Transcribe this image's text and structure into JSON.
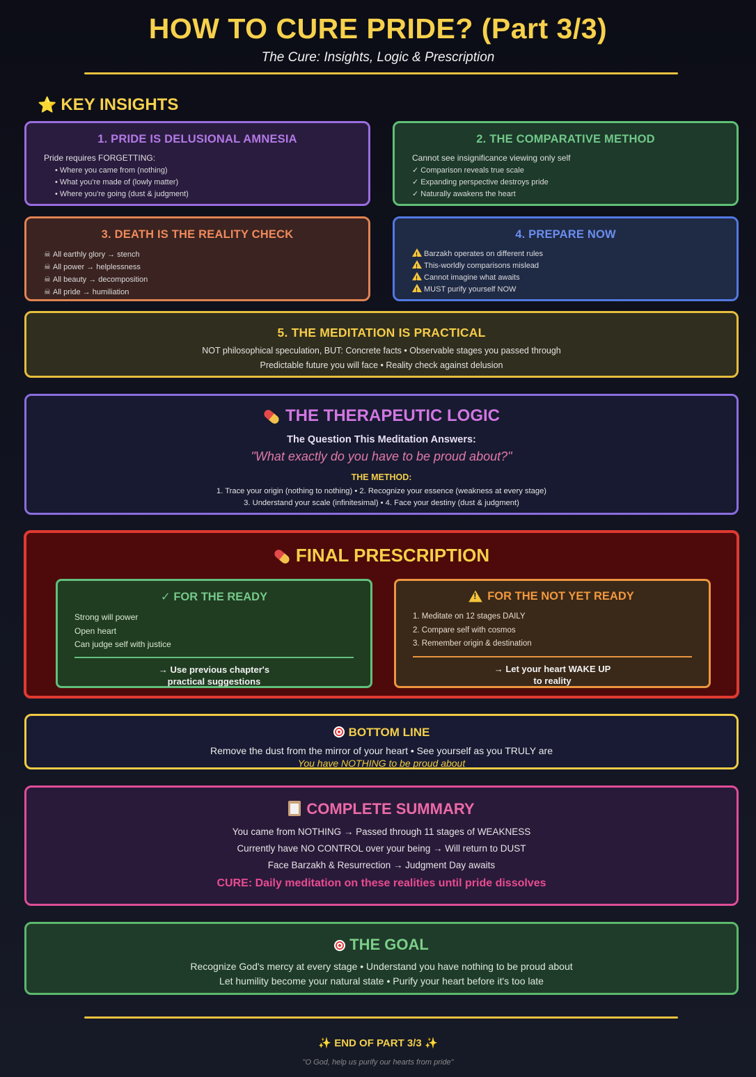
{
  "header": {
    "title": "HOW TO CURE PRIDE? (Part 3/3)",
    "subtitle": "The Cure: Insights, Logic & Prescription"
  },
  "insights": {
    "heading": "KEY INSIGHTS",
    "heading_icon": "star-icon",
    "cards": [
      {
        "title": "1. PRIDE IS DELUSIONAL AMNESIA",
        "intro": "Pride requires FORGETTING:",
        "items": [
          "Where you came from (nothing)",
          "What you're made of (lowly matter)",
          "Where you're going (dust & judgment)"
        ],
        "bullet": "•"
      },
      {
        "title": "2. THE COMPARATIVE METHOD",
        "intro": "Cannot see insignificance viewing only self",
        "items": [
          "Comparison reveals true scale",
          "Expanding perspective destroys pride",
          "Naturally awakens the heart"
        ],
        "bullet": "✓"
      },
      {
        "title": "3. DEATH IS THE REALITY CHECK",
        "items": [
          "All earthly glory → stench",
          "All power → helplessness",
          "All beauty → decomposition",
          "All pride → humiliation"
        ],
        "bullet": "☠"
      },
      {
        "title": "4. PREPARE NOW",
        "items": [
          "Barzakh operates on different rules",
          "This-worldly comparisons mislead",
          "Cannot imagine what awaits",
          "MUST purify yourself NOW"
        ],
        "bullet_icon": "warning-icon"
      },
      {
        "title": "5. THE MEDITATION IS PRACTICAL",
        "lines": [
          "NOT philosophical speculation, BUT: Concrete facts • Observable stages you passed through",
          "Predictable future you will face • Reality check against delusion"
        ]
      }
    ]
  },
  "therapy": {
    "title": "THE THERAPEUTIC LOGIC",
    "question_label": "The Question This Meditation Answers:",
    "quote": "\"What exactly do you have to be proud about?\"",
    "method_label": "THE METHOD:",
    "method_lines": [
      "1. Trace your origin (nothing to nothing) • 2. Recognize your essence (weakness at every stage)",
      "3. Understand your scale (infinitesimal) • 4. Face your destiny (dust & judgment)"
    ]
  },
  "prescription": {
    "title": "FINAL PRESCRIPTION",
    "ready": {
      "title": "✓ FOR THE READY",
      "items": [
        "Strong will power",
        "Open heart",
        "Can judge self with justice"
      ],
      "action_line1": "→ Use previous chapter's",
      "action_line2": "practical suggestions"
    },
    "not_ready": {
      "title": "FOR THE NOT YET READY",
      "items": [
        "1. Meditate on 12 stages DAILY",
        "2. Compare self with cosmos",
        "3. Remember origin & destination"
      ],
      "action_line1": "→ Let your heart WAKE UP",
      "action_line2": "to reality"
    }
  },
  "bottom_line": {
    "title": "BOTTOM LINE",
    "line1": "Remove the dust from the mirror of your heart • See yourself as you TRULY are",
    "line2": "You have NOTHING to be proud about"
  },
  "summary": {
    "title": "COMPLETE SUMMARY",
    "lines": [
      "You came from NOTHING → Passed through 11 stages of WEAKNESS",
      "Currently have NO CONTROL over your being → Will return to DUST",
      "Face Barzakh & Resurrection → Judgment Day awaits"
    ],
    "cure": "CURE: Daily meditation on these realities until pride dissolves"
  },
  "goal": {
    "title": "THE GOAL",
    "lines": [
      "Recognize God's mercy at every stage • Understand you have nothing to be proud about",
      "Let humility become your natural state • Purify your heart before it's too late"
    ]
  },
  "footer": {
    "end": "END OF PART 3/3",
    "quote": "\"O God, help us purify our hearts from pride\""
  },
  "colors": {
    "accent_gold": "#f7d14c",
    "purple": "#9a6de0",
    "green": "#5fbf76",
    "orange": "#e08353",
    "blue": "#5279e2",
    "red": "#e03a30",
    "pink": "#e04e98"
  }
}
